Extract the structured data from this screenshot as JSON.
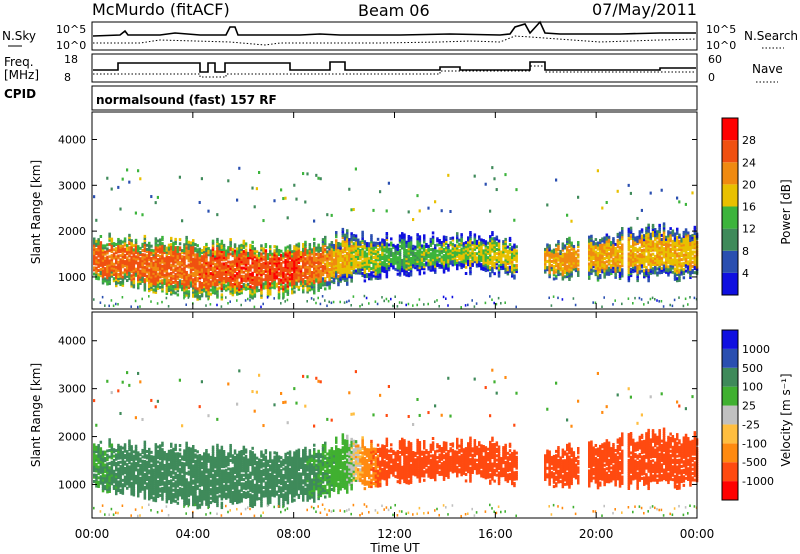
{
  "header": {
    "station": "McMurdo (fitACF)",
    "beam": "Beam 06",
    "date": "07/May/2011"
  },
  "summary_panel": {
    "left_label_sky": "N.Sky",
    "left_ticks_sky": [
      "10^5",
      "10^0"
    ],
    "right_label_search": "N.Search",
    "right_ticks_search": [
      "10^5",
      "10^0"
    ],
    "freq_label_1": "Freq.",
    "freq_label_2": "[MHz]",
    "freq_ticks": [
      "18",
      "8"
    ],
    "nave_label": "Nave",
    "nave_ticks": [
      "60",
      "0"
    ],
    "cpid_label": "CPID",
    "cpid_text": "normalsound (fast) 157 RF"
  },
  "colors": {
    "power": [
      "#1010e0",
      "#2a4fb0",
      "#3f8a5a",
      "#3cb43c",
      "#e8c000",
      "#f08a10",
      "#f05010",
      "#ff0000"
    ],
    "velocity": [
      "#ff0000",
      "#ff4a10",
      "#ff8a10",
      "#ffbe40",
      "#c0c0c0",
      "#40b030",
      "#3f8a5a",
      "#2a4fb0",
      "#1010e0"
    ]
  },
  "chart_data": [
    {
      "type": "heatmap",
      "name": "power",
      "xlabel": "",
      "ylabel": "Slant Range [km]",
      "x_ticks": [
        "00:00",
        "04:00",
        "08:00",
        "12:00",
        "16:00",
        "20:00",
        "00:00"
      ],
      "y_ticks": [
        "1000",
        "2000",
        "3000",
        "4000"
      ],
      "ylim": [
        300,
        4600
      ],
      "colorbar": {
        "label": "Power [dB]",
        "ticks": [
          "4",
          "8",
          "12",
          "16",
          "20",
          "24",
          "28"
        ],
        "range": [
          0,
          32
        ]
      },
      "echo_band_km": [
        {
          "hour": 0,
          "low": 1000,
          "high": 1800,
          "power_db": 28
        },
        {
          "hour": 4,
          "low": 600,
          "high": 1700,
          "power_db": 28
        },
        {
          "hour": 8,
          "low": 650,
          "high": 1600,
          "power_db": 30
        },
        {
          "hour": 10,
          "low": 900,
          "high": 1900,
          "power_db": 22
        },
        {
          "hour": 12,
          "low": 1100,
          "high": 1800,
          "power_db": 16
        },
        {
          "hour": 14,
          "low": 1200,
          "high": 1800,
          "power_db": 18
        },
        {
          "hour": 16,
          "low": 1100,
          "high": 1800,
          "power_db": 20
        },
        {
          "hour": 18.5,
          "low": 1000,
          "high": 1700,
          "power_db": 24
        },
        {
          "hour": 22,
          "low": 1000,
          "high": 2000,
          "power_db": 22
        }
      ]
    },
    {
      "type": "heatmap",
      "name": "velocity",
      "xlabel": "Time UT",
      "ylabel": "Slant Range [km]",
      "x_ticks": [
        "00:00",
        "04:00",
        "08:00",
        "12:00",
        "16:00",
        "20:00",
        "00:00"
      ],
      "y_ticks": [
        "1000",
        "2000",
        "3000",
        "4000"
      ],
      "ylim": [
        300,
        4600
      ],
      "colorbar": {
        "label": "Velocity [m s⁻¹]",
        "ticks": [
          "1000",
          "500",
          "100",
          "25",
          "-25",
          "-100",
          "-500",
          "-1000"
        ]
      },
      "echo_band_km": [
        {
          "hour": 0,
          "low": 1000,
          "high": 1800,
          "velocity": 100
        },
        {
          "hour": 4,
          "low": 600,
          "high": 1700,
          "velocity": 200
        },
        {
          "hour": 8,
          "low": 650,
          "high": 1600,
          "velocity": 150
        },
        {
          "hour": 10,
          "low": 900,
          "high": 1900,
          "velocity": 50
        },
        {
          "hour": 12,
          "low": 1100,
          "high": 1800,
          "velocity": -200
        },
        {
          "hour": 14,
          "low": 1200,
          "high": 1800,
          "velocity": -300
        },
        {
          "hour": 16,
          "low": 1100,
          "high": 1800,
          "velocity": -200
        },
        {
          "hour": 18.5,
          "low": 1000,
          "high": 1700,
          "velocity": -300
        },
        {
          "hour": 22,
          "low": 1000,
          "high": 2000,
          "velocity": -250
        }
      ]
    }
  ]
}
